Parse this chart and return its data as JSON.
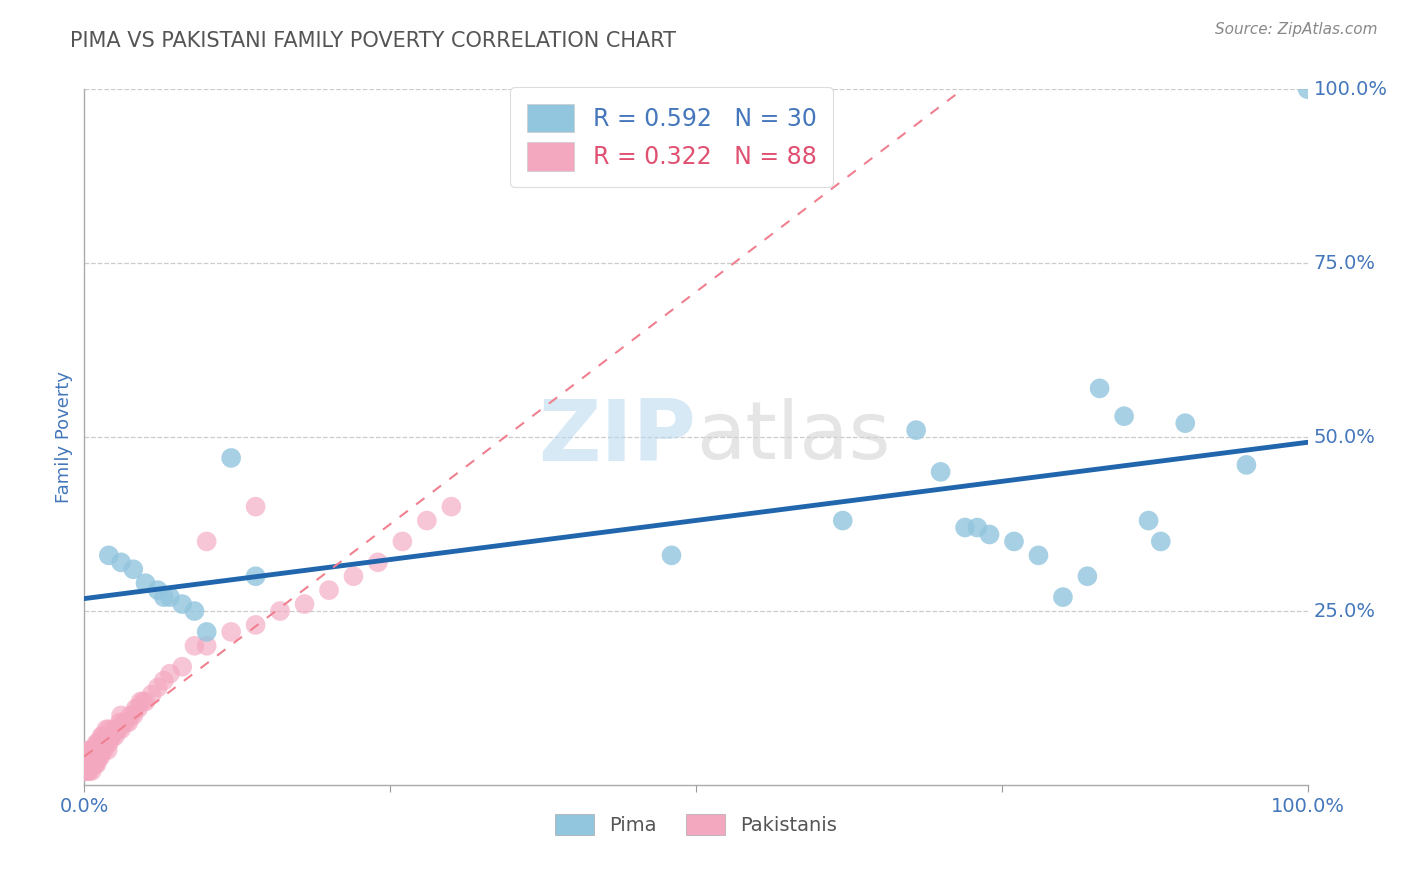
{
  "title": "PIMA VS PAKISTANI FAMILY POVERTY CORRELATION CHART",
  "source_text": "Source: ZipAtlas.com",
  "ylabel": "Family Poverty",
  "pima_R": 0.592,
  "pima_N": 30,
  "pakistani_R": 0.322,
  "pakistani_N": 88,
  "pima_color": "#92C5DE",
  "pakistani_color": "#F4A8C0",
  "pima_line_color": "#2166AC",
  "pakistani_line_color": "#F08090",
  "title_color": "#555555",
  "tick_label_color": "#4477BB",
  "legend_text_color_1": "#4477BB",
  "legend_text_color_2": "#E05070",
  "watermark_color": "#D8EEF8",
  "background_color": "#FFFFFF",
  "grid_color": "#CCCCCC",
  "ytick_positions": [
    0.25,
    0.5,
    0.75,
    1.0
  ],
  "ytick_labels": [
    "25.0%",
    "50.0%",
    "75.0%",
    "100.0%"
  ],
  "pima_x": [
    0.02,
    0.03,
    0.04,
    0.05,
    0.06,
    0.065,
    0.07,
    0.08,
    0.09,
    0.1,
    0.12,
    0.14,
    0.48,
    0.62,
    0.68,
    0.7,
    0.72,
    0.73,
    0.74,
    0.76,
    0.78,
    0.8,
    0.82,
    0.83,
    0.85,
    0.87,
    0.88,
    0.9,
    0.95,
    1.0
  ],
  "pima_y": [
    0.33,
    0.32,
    0.31,
    0.29,
    0.28,
    0.27,
    0.27,
    0.26,
    0.25,
    0.22,
    0.47,
    0.3,
    0.33,
    0.38,
    0.51,
    0.45,
    0.37,
    0.37,
    0.36,
    0.35,
    0.33,
    0.27,
    0.3,
    0.57,
    0.53,
    0.38,
    0.35,
    0.52,
    0.46,
    1.0
  ],
  "pakistani_x": [
    0.0,
    0.0,
    0.001,
    0.001,
    0.002,
    0.002,
    0.002,
    0.003,
    0.003,
    0.003,
    0.004,
    0.004,
    0.004,
    0.005,
    0.005,
    0.005,
    0.006,
    0.006,
    0.006,
    0.007,
    0.007,
    0.007,
    0.008,
    0.008,
    0.009,
    0.009,
    0.01,
    0.01,
    0.01,
    0.011,
    0.011,
    0.012,
    0.012,
    0.013,
    0.013,
    0.014,
    0.014,
    0.015,
    0.015,
    0.016,
    0.016,
    0.017,
    0.018,
    0.018,
    0.019,
    0.019,
    0.02,
    0.02,
    0.021,
    0.022,
    0.023,
    0.024,
    0.025,
    0.026,
    0.027,
    0.028,
    0.029,
    0.03,
    0.03,
    0.032,
    0.034,
    0.036,
    0.038,
    0.04,
    0.042,
    0.044,
    0.046,
    0.048,
    0.05,
    0.055,
    0.06,
    0.065,
    0.07,
    0.08,
    0.09,
    0.1,
    0.12,
    0.14,
    0.16,
    0.18,
    0.2,
    0.22,
    0.24,
    0.26,
    0.28,
    0.3,
    0.14,
    0.1
  ],
  "pakistani_y": [
    0.02,
    0.03,
    0.02,
    0.03,
    0.02,
    0.03,
    0.04,
    0.02,
    0.03,
    0.04,
    0.02,
    0.03,
    0.05,
    0.03,
    0.04,
    0.05,
    0.02,
    0.03,
    0.05,
    0.03,
    0.04,
    0.05,
    0.03,
    0.05,
    0.03,
    0.05,
    0.03,
    0.04,
    0.06,
    0.04,
    0.06,
    0.04,
    0.06,
    0.04,
    0.06,
    0.05,
    0.07,
    0.05,
    0.07,
    0.05,
    0.07,
    0.06,
    0.06,
    0.08,
    0.05,
    0.07,
    0.06,
    0.08,
    0.07,
    0.07,
    0.07,
    0.08,
    0.07,
    0.08,
    0.08,
    0.08,
    0.09,
    0.08,
    0.1,
    0.09,
    0.09,
    0.09,
    0.1,
    0.1,
    0.11,
    0.11,
    0.12,
    0.12,
    0.12,
    0.13,
    0.14,
    0.15,
    0.16,
    0.17,
    0.2,
    0.2,
    0.22,
    0.23,
    0.25,
    0.26,
    0.28,
    0.3,
    0.32,
    0.35,
    0.38,
    0.4,
    0.4,
    0.35
  ]
}
